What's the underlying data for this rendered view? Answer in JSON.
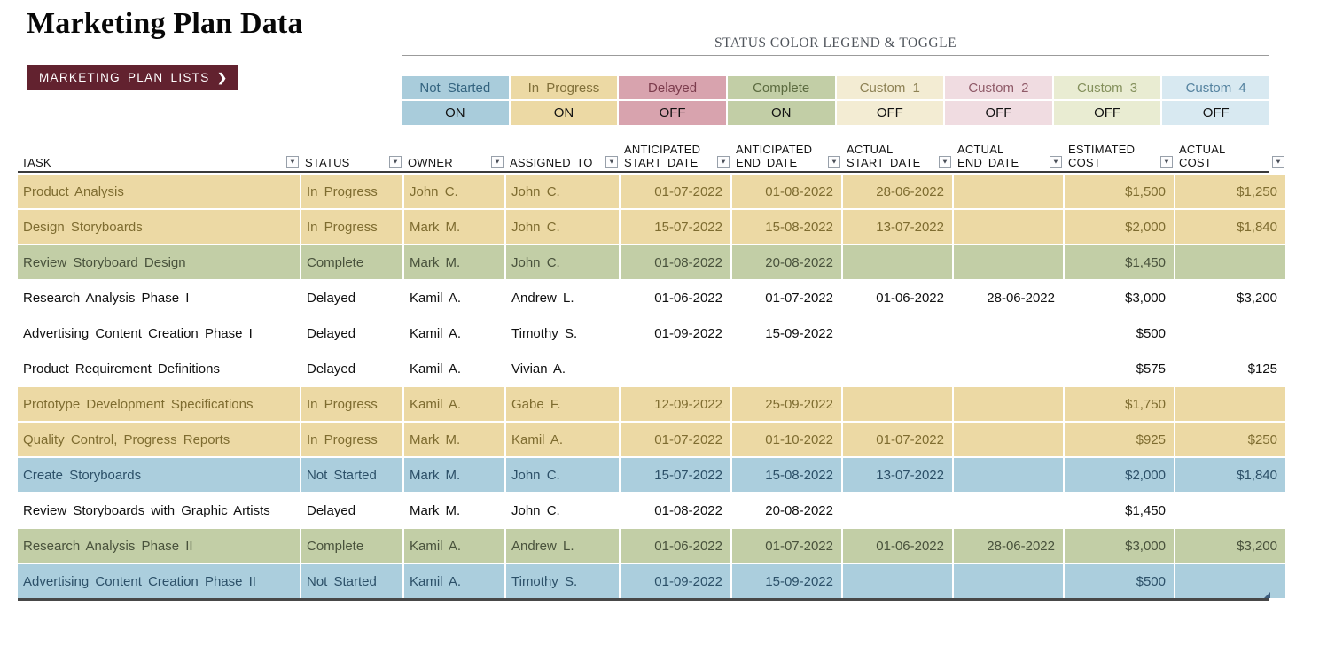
{
  "page": {
    "title": "Marketing Plan Data"
  },
  "nav_button": {
    "label": "MARKETING PLAN LISTS",
    "chevron": "❯"
  },
  "legend": {
    "title": "STATUS COLOR LEGEND & TOGGLE",
    "items": [
      {
        "label": "Not Started",
        "state": "ON",
        "color": "#a9ccdb",
        "label_color": "#33637f"
      },
      {
        "label": "In Progress",
        "state": "ON",
        "color": "#ecd9a4",
        "label_color": "#81703a"
      },
      {
        "label": "Delayed",
        "state": "OFF",
        "color": "#d8a3ae",
        "label_color": "#7c3c4d"
      },
      {
        "label": "Complete",
        "state": "ON",
        "color": "#c2cea6",
        "label_color": "#5c6b40"
      },
      {
        "label": "Custom 1",
        "state": "OFF",
        "color": "#f3ecd3",
        "label_color": "#8d8154"
      },
      {
        "label": "Custom 2",
        "state": "OFF",
        "color": "#f0dce1",
        "label_color": "#8f5a68"
      },
      {
        "label": "Custom 3",
        "state": "OFF",
        "color": "#e9ecd2",
        "label_color": "#84905c"
      },
      {
        "label": "Custom 4",
        "state": "OFF",
        "color": "#d8e9f1",
        "label_color": "#54829f"
      }
    ]
  },
  "table": {
    "columns": [
      {
        "line1": "",
        "line2": "TASK"
      },
      {
        "line1": "",
        "line2": "STATUS"
      },
      {
        "line1": "",
        "line2": "OWNER"
      },
      {
        "line1": "",
        "line2": "ASSIGNED TO"
      },
      {
        "line1": "ANTICIPATED",
        "line2": "START DATE"
      },
      {
        "line1": "ANTICIPATED",
        "line2": "END DATE"
      },
      {
        "line1": "ACTUAL",
        "line2": "START DATE"
      },
      {
        "line1": "ACTUAL",
        "line2": "END DATE"
      },
      {
        "line1": "ESTIMATED",
        "line2": "COST"
      },
      {
        "line1": "ACTUAL",
        "line2": "COST"
      }
    ],
    "row_themes": {
      "tan": {
        "bg": "#ecd9a4",
        "text": "#7e6c30"
      },
      "green": {
        "bg": "#c2cea6",
        "text": "#49523c"
      },
      "blue": {
        "bg": "#abcedd",
        "text": "#2c5068"
      },
      "white": {
        "bg": "transparent",
        "text": "#101010"
      }
    },
    "rows": [
      {
        "theme": "tan",
        "task": "Product Analysis",
        "status": "In Progress",
        "owner": "John C.",
        "assigned_to": "John C.",
        "anticipated_start": "01-07-2022",
        "anticipated_end": "01-08-2022",
        "actual_start": "28-06-2022",
        "actual_end": "",
        "estimated_cost": "$1,500",
        "actual_cost": "$1,250"
      },
      {
        "theme": "tan",
        "task": "Design Storyboards",
        "status": "In Progress",
        "owner": "Mark M.",
        "assigned_to": "John C.",
        "anticipated_start": "15-07-2022",
        "anticipated_end": "15-08-2022",
        "actual_start": "13-07-2022",
        "actual_end": "",
        "estimated_cost": "$2,000",
        "actual_cost": "$1,840"
      },
      {
        "theme": "green",
        "task": "Review Storyboard Design",
        "status": "Complete",
        "owner": "Mark M.",
        "assigned_to": "John C.",
        "anticipated_start": "01-08-2022",
        "anticipated_end": "20-08-2022",
        "actual_start": "",
        "actual_end": "",
        "estimated_cost": "$1,450",
        "actual_cost": ""
      },
      {
        "theme": "white",
        "task": "Research Analysis Phase I",
        "status": "Delayed",
        "owner": "Kamil A.",
        "assigned_to": "Andrew L.",
        "anticipated_start": "01-06-2022",
        "anticipated_end": "01-07-2022",
        "actual_start": "01-06-2022",
        "actual_end": "28-06-2022",
        "estimated_cost": "$3,000",
        "actual_cost": "$3,200"
      },
      {
        "theme": "white",
        "task": "Advertising Content Creation Phase I",
        "status": "Delayed",
        "owner": "Kamil A.",
        "assigned_to": "Timothy S.",
        "anticipated_start": "01-09-2022",
        "anticipated_end": "15-09-2022",
        "actual_start": "",
        "actual_end": "",
        "estimated_cost": "$500",
        "actual_cost": ""
      },
      {
        "theme": "white",
        "task": "Product Requirement Definitions",
        "status": "Delayed",
        "owner": "Kamil A.",
        "assigned_to": "Vivian A.",
        "anticipated_start": "",
        "anticipated_end": "",
        "actual_start": "",
        "actual_end": "",
        "estimated_cost": "$575",
        "actual_cost": "$125"
      },
      {
        "theme": "tan",
        "task": "Prototype Development Specifications",
        "status": "In Progress",
        "owner": "Kamil A.",
        "assigned_to": "Gabe F.",
        "anticipated_start": "12-09-2022",
        "anticipated_end": "25-09-2022",
        "actual_start": "",
        "actual_end": "",
        "estimated_cost": "$1,750",
        "actual_cost": ""
      },
      {
        "theme": "tan",
        "task": "Quality Control, Progress Reports",
        "status": "In Progress",
        "owner": "Mark M.",
        "assigned_to": "Kamil A.",
        "anticipated_start": "01-07-2022",
        "anticipated_end": "01-10-2022",
        "actual_start": "01-07-2022",
        "actual_end": "",
        "estimated_cost": "$925",
        "actual_cost": "$250"
      },
      {
        "theme": "blue",
        "task": "Create Storyboards",
        "status": "Not Started",
        "owner": "Mark M.",
        "assigned_to": "John C.",
        "anticipated_start": "15-07-2022",
        "anticipated_end": "15-08-2022",
        "actual_start": "13-07-2022",
        "actual_end": "",
        "estimated_cost": "$2,000",
        "actual_cost": "$1,840"
      },
      {
        "theme": "white",
        "task": "Review Storyboards with Graphic Artists",
        "status": "Delayed",
        "owner": "Mark M.",
        "assigned_to": "John C.",
        "anticipated_start": "01-08-2022",
        "anticipated_end": "20-08-2022",
        "actual_start": "",
        "actual_end": "",
        "estimated_cost": "$1,450",
        "actual_cost": ""
      },
      {
        "theme": "green",
        "task": "Research Analysis Phase II",
        "status": "Complete",
        "owner": "Kamil A.",
        "assigned_to": "Andrew L.",
        "anticipated_start": "01-06-2022",
        "anticipated_end": "01-07-2022",
        "actual_start": "01-06-2022",
        "actual_end": "28-06-2022",
        "estimated_cost": "$3,000",
        "actual_cost": "$3,200"
      },
      {
        "theme": "blue",
        "task": "Advertising Content Creation Phase II",
        "status": "Not Started",
        "owner": "Kamil A.",
        "assigned_to": "Timothy S.",
        "anticipated_start": "01-09-2022",
        "anticipated_end": "15-09-2022",
        "actual_start": "",
        "actual_end": "",
        "estimated_cost": "$500",
        "actual_cost": ""
      }
    ]
  }
}
